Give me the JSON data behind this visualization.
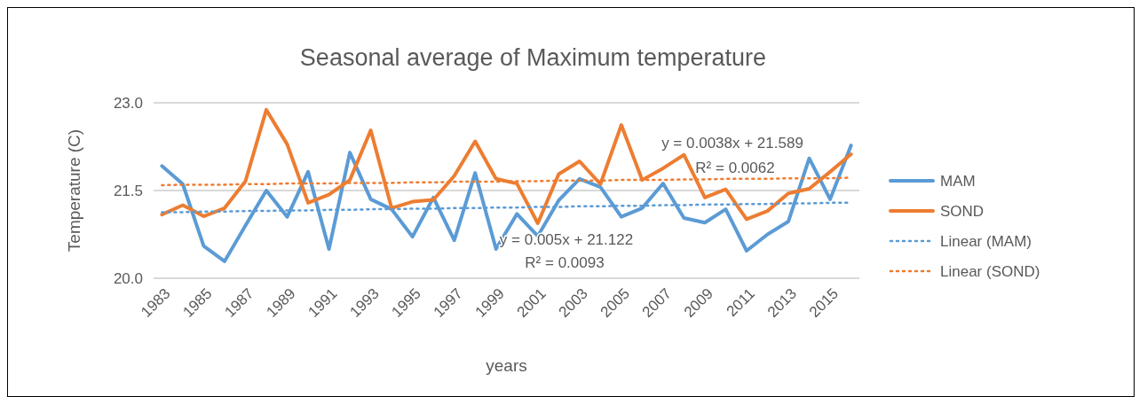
{
  "chart_data": {
    "type": "line",
    "title": "Seasonal average of Maximum temperature",
    "xlabel": "years",
    "ylabel": "Temperature (C)",
    "x": [
      1983,
      1984,
      1985,
      1986,
      1987,
      1988,
      1989,
      1990,
      1991,
      1992,
      1993,
      1994,
      1995,
      1996,
      1997,
      1998,
      1999,
      2000,
      2001,
      2002,
      2003,
      2004,
      2005,
      2006,
      2007,
      2008,
      2009,
      2010,
      2011,
      2012,
      2013,
      2014,
      2015,
      2016
    ],
    "xlim": [
      1982.6,
      2016.4
    ],
    "xticks": [
      1983,
      1985,
      1987,
      1989,
      1991,
      1993,
      1995,
      1997,
      1999,
      2001,
      2003,
      2005,
      2007,
      2009,
      2011,
      2013,
      2015
    ],
    "ylim": [
      20.0,
      23.0
    ],
    "yticks": [
      {
        "value": 20.0,
        "label": "20.0"
      },
      {
        "value": 21.5,
        "label": "21.5"
      },
      {
        "value": 23.0,
        "label": "23.0"
      }
    ],
    "grid": "y",
    "legend": "right",
    "series": [
      {
        "name": "MAM",
        "color": "#5b9bd5",
        "values": [
          21.92,
          21.61,
          20.55,
          20.29,
          20.9,
          21.5,
          21.05,
          21.82,
          20.5,
          22.15,
          21.35,
          21.18,
          20.71,
          21.38,
          20.65,
          21.8,
          20.5,
          21.1,
          20.72,
          21.33,
          21.7,
          21.56,
          21.05,
          21.2,
          21.62,
          21.03,
          20.95,
          21.18,
          20.47,
          20.75,
          20.97,
          22.05,
          21.35,
          22.27
        ]
      },
      {
        "name": "SOND",
        "color": "#ed7d31",
        "values": [
          21.09,
          21.25,
          21.06,
          21.2,
          21.66,
          22.88,
          22.29,
          21.29,
          21.43,
          21.68,
          22.53,
          21.2,
          21.31,
          21.34,
          21.75,
          22.34,
          21.7,
          21.62,
          20.94,
          21.78,
          22.0,
          21.61,
          22.62,
          21.68,
          21.88,
          22.11,
          21.38,
          21.52,
          21.01,
          21.15,
          21.45,
          21.53,
          21.82,
          22.12
        ]
      },
      {
        "name": "Linear (MAM)",
        "color": "#5b9bd5",
        "line_style": "dotted",
        "values": [
          21.13,
          21.13,
          21.14,
          21.14,
          21.15,
          21.15,
          21.16,
          21.16,
          21.17,
          21.17,
          21.18,
          21.18,
          21.19,
          21.19,
          21.2,
          21.2,
          21.21,
          21.21,
          21.22,
          21.22,
          21.23,
          21.23,
          21.24,
          21.24,
          21.25,
          21.25,
          21.26,
          21.26,
          21.27,
          21.27,
          21.28,
          21.28,
          21.29,
          21.29
        ]
      },
      {
        "name": "Linear (SOND)",
        "color": "#ed7d31",
        "line_style": "dotted",
        "values": [
          21.59,
          21.6,
          21.6,
          21.6,
          21.61,
          21.61,
          21.62,
          21.62,
          21.62,
          21.63,
          21.63,
          21.63,
          21.64,
          21.64,
          21.65,
          21.65,
          21.65,
          21.66,
          21.66,
          21.67,
          21.67,
          21.67,
          21.68,
          21.68,
          21.68,
          21.69,
          21.69,
          21.7,
          21.7,
          21.7,
          21.71,
          21.71,
          21.71,
          21.72
        ]
      }
    ],
    "annotations": [
      "y = 0.0038x + 21.589",
      "R² = 0.0062",
      "y = 0.005x + 21.122",
      "R² = 0.0093"
    ]
  }
}
